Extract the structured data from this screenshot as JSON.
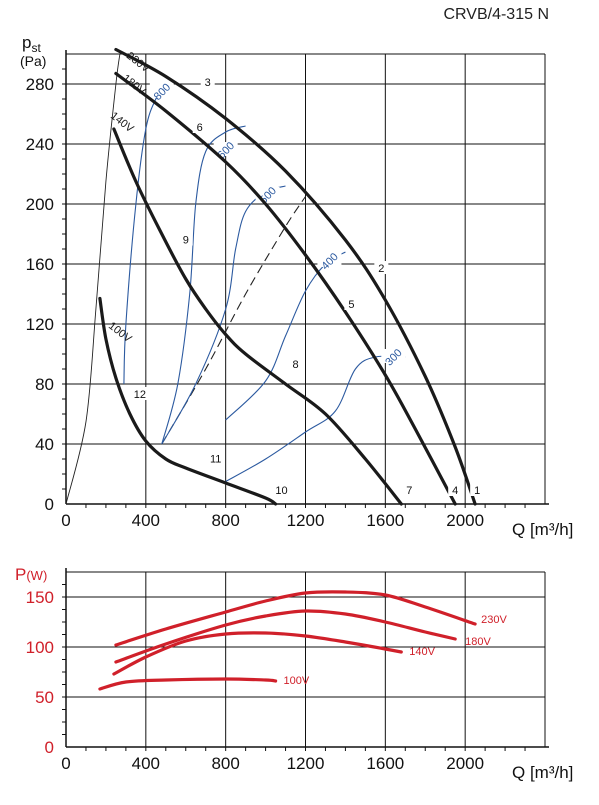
{
  "header": {
    "model": "CRVB/4-315 N"
  },
  "chart_data": [
    {
      "type": "line",
      "title": "",
      "xlabel": "Q [m³/h]",
      "ylabel": "pst (Pa)",
      "ylabel_main": "p",
      "ylabel_sub": "st",
      "ylabel_unit": "(Pa)",
      "xlim": [
        0,
        2400
      ],
      "ylim": [
        0,
        300
      ],
      "x_ticks": [
        0,
        400,
        800,
        1200,
        1600,
        2000
      ],
      "y_ticks": [
        0,
        40,
        80,
        120,
        160,
        200,
        240,
        280
      ],
      "grid": true,
      "series": [
        {
          "name": "230V",
          "label_at": [
            300,
            298
          ],
          "x": [
            250,
            500,
            800,
            1100,
            1400,
            1600,
            1800,
            1950,
            2050
          ],
          "y": [
            303,
            285,
            257,
            222,
            176,
            136,
            85,
            38,
            0
          ]
        },
        {
          "name": "180V",
          "label_at": [
            280,
            283
          ],
          "x": [
            250,
            500,
            800,
            1000,
            1200,
            1400,
            1600,
            1750,
            1950
          ],
          "y": [
            287,
            262,
            228,
            200,
            166,
            128,
            86,
            50,
            0
          ]
        },
        {
          "name": "140V",
          "label_at": [
            220,
            258
          ],
          "x": [
            240,
            350,
            480,
            600,
            700,
            800,
            900,
            1100,
            1300,
            1500,
            1680
          ],
          "y": [
            250,
            215,
            180,
            150,
            130,
            113,
            100,
            80,
            60,
            30,
            0
          ]
        },
        {
          "name": "100V",
          "label_at": [
            210,
            118
          ],
          "x": [
            170,
            200,
            250,
            320,
            400,
            500,
            600,
            800,
            1000,
            1050
          ],
          "y": [
            137,
            110,
            84,
            60,
            42,
            30,
            24,
            14,
            4,
            0
          ]
        }
      ],
      "system_curves": [
        {
          "x": [
            0,
            100,
            150,
            200,
            250,
            270
          ],
          "y": [
            0,
            55,
            130,
            215,
            280,
            300
          ]
        },
        {
          "x": [
            480,
            700,
            900,
            1100,
            1200
          ],
          "y": [
            40,
            90,
            140,
            185,
            205
          ]
        }
      ],
      "rpm_curves": [
        {
          "name": "800",
          "label_at": [
            480,
            275
          ],
          "x": [
            290,
            300,
            350,
            400,
            450,
            500
          ],
          "y": [
            80,
            120,
            200,
            250,
            270,
            280
          ]
        },
        {
          "name": "600",
          "label_at": [
            800,
            236
          ],
          "x": [
            480,
            560,
            620,
            650,
            700,
            800,
            900
          ],
          "y": [
            40,
            80,
            140,
            200,
            235,
            248,
            252
          ]
        },
        {
          "name": "500",
          "label_at": [
            1010,
            206
          ],
          "x": [
            480,
            650,
            800,
            850,
            900,
            1000,
            1100
          ],
          "y": [
            40,
            80,
            130,
            170,
            195,
            208,
            212
          ]
        },
        {
          "name": "400",
          "label_at": [
            1320,
            162
          ],
          "x": [
            800,
            1000,
            1100,
            1200,
            1300,
            1400
          ],
          "y": [
            56,
            82,
            112,
            142,
            160,
            168
          ]
        },
        {
          "name": "300",
          "label_at": [
            1640,
            98
          ],
          "x": [
            800,
            1000,
            1200,
            1350,
            1450,
            1550,
            1700
          ],
          "y": [
            15,
            30,
            48,
            62,
            90,
            98,
            98
          ]
        }
      ],
      "points": [
        {
          "label": "1",
          "x": 2060,
          "y": 8
        },
        {
          "label": "2",
          "x": 1580,
          "y": 156
        },
        {
          "label": "3",
          "x": 710,
          "y": 280
        },
        {
          "label": "4",
          "x": 1950,
          "y": 8
        },
        {
          "label": "5",
          "x": 1430,
          "y": 132
        },
        {
          "label": "6",
          "x": 670,
          "y": 250
        },
        {
          "label": "7",
          "x": 1720,
          "y": 8
        },
        {
          "label": "8",
          "x": 1150,
          "y": 92
        },
        {
          "label": "9",
          "x": 600,
          "y": 175
        },
        {
          "label": "10",
          "x": 1080,
          "y": 8
        },
        {
          "label": "11",
          "x": 750,
          "y": 29
        },
        {
          "label": "12",
          "x": 370,
          "y": 72
        }
      ]
    },
    {
      "type": "line",
      "title": "",
      "xlabel": "Q [m³/h]",
      "ylabel": "P(W)",
      "ylabel_main": "P",
      "ylabel_unit": "(W)",
      "xlim": [
        0,
        2400
      ],
      "ylim": [
        0,
        175
      ],
      "x_ticks": [
        0,
        400,
        800,
        1200,
        1600,
        2000
      ],
      "y_ticks": [
        0,
        50,
        100,
        150
      ],
      "grid": true,
      "series": [
        {
          "name": "230V",
          "label_at": [
            2080,
            124
          ],
          "x": [
            250,
            500,
            800,
            1000,
            1200,
            1400,
            1600,
            1800,
            2050
          ],
          "y": [
            102,
            118,
            135,
            146,
            154,
            155,
            152,
            140,
            123
          ]
        },
        {
          "name": "180V",
          "label_at": [
            2000,
            102
          ],
          "x": [
            250,
            500,
            800,
            1000,
            1200,
            1400,
            1600,
            1800,
            1950
          ],
          "y": [
            85,
            103,
            122,
            131,
            136,
            133,
            125,
            115,
            108
          ]
        },
        {
          "name": "140V",
          "label_at": [
            1720,
            92
          ],
          "x": [
            240,
            400,
            600,
            800,
            1000,
            1200,
            1400,
            1600,
            1680
          ],
          "y": [
            73,
            90,
            106,
            113,
            114,
            111,
            105,
            98,
            95
          ]
        },
        {
          "name": "100V",
          "label_at": [
            1090,
            63
          ],
          "x": [
            170,
            300,
            500,
            800,
            1000,
            1050
          ],
          "y": [
            58,
            65,
            67,
            68,
            67,
            66
          ]
        }
      ]
    }
  ]
}
